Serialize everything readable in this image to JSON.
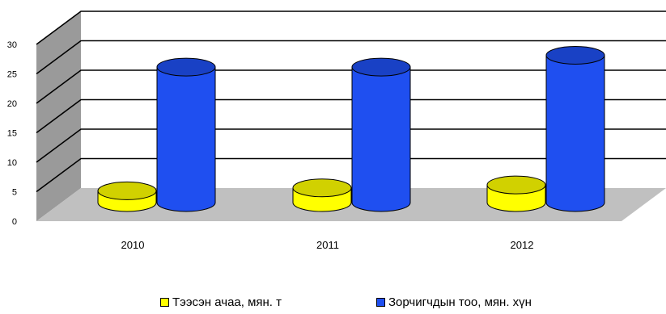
{
  "chart_data": {
    "type": "bar",
    "style": "3d-cylinder",
    "categories": [
      "2010",
      "2011",
      "2012"
    ],
    "series": [
      {
        "name": "Тээсэн ачаа, мян. т",
        "values": [
          2,
          2.5,
          3
        ],
        "color": "#ffff00"
      },
      {
        "name": "Зорчигчдын тоо, мян. хүн",
        "values": [
          23,
          23,
          25
        ],
        "color": "#1f4ff0"
      }
    ],
    "yticks": [
      "0",
      "5",
      "10",
      "15",
      "20",
      "25",
      "30"
    ],
    "ylim": [
      0,
      30
    ],
    "grid": true,
    "legend_position": "bottom"
  },
  "legend": {
    "item1_label": "Тээсэн ачаа, мян. т",
    "item2_label": "Зорчигчдын тоо, мян. хүн"
  },
  "colors": {
    "floor": "#c0c0c0",
    "wall": "#ffffff",
    "left_wall": "#9a9a9a",
    "gridline": "#000000"
  }
}
